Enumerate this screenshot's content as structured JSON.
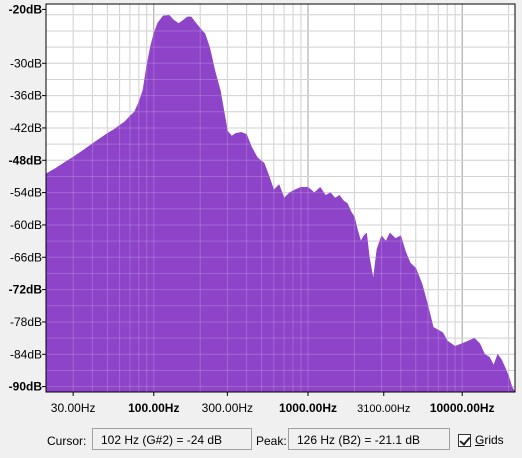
{
  "chart_data": {
    "type": "area",
    "x_scale": "log",
    "xlim": [
      20,
      22000
    ],
    "ylim": [
      -91,
      -19
    ],
    "fill_color": "#8e44c8",
    "y_ticks": [
      {
        "label": "-20dB",
        "value": -20,
        "bold": true
      },
      {
        "label": "-30dB",
        "value": -30,
        "bold": false
      },
      {
        "label": "-36dB",
        "value": -36,
        "bold": false
      },
      {
        "label": "-42dB",
        "value": -42,
        "bold": false
      },
      {
        "label": "-48dB",
        "value": -48,
        "bold": true
      },
      {
        "label": "-54dB",
        "value": -54,
        "bold": false
      },
      {
        "label": "-60dB",
        "value": -60,
        "bold": false
      },
      {
        "label": "-66dB",
        "value": -66,
        "bold": false
      },
      {
        "label": "-72dB",
        "value": -72,
        "bold": true
      },
      {
        "label": "-78dB",
        "value": -78,
        "bold": false
      },
      {
        "label": "-84dB",
        "value": -84,
        "bold": false
      },
      {
        "label": "-90dB",
        "value": -90,
        "bold": true
      }
    ],
    "x_ticks": [
      {
        "label": "30.00Hz",
        "value": 30,
        "style": "normal"
      },
      {
        "label": "100.00Hz",
        "value": 100,
        "style": "bold"
      },
      {
        "label": "300.00Hz",
        "value": 300,
        "style": "normal"
      },
      {
        "label": "1000.00Hz",
        "value": 1000,
        "style": "bold"
      },
      {
        "label": "3100.00Hz",
        "value": 3100,
        "style": "small"
      },
      {
        "label": "10000.00Hz",
        "value": 10000,
        "style": "bold"
      }
    ],
    "major_grid_x": [
      100,
      1000,
      10000
    ],
    "spectrum": [
      [
        20,
        -50.5
      ],
      [
        23,
        -49.5
      ],
      [
        27,
        -48.2
      ],
      [
        30,
        -47.4
      ],
      [
        35,
        -46.1
      ],
      [
        40,
        -44.9
      ],
      [
        45,
        -43.9
      ],
      [
        50,
        -43.0
      ],
      [
        55,
        -42.3
      ],
      [
        60,
        -41.5
      ],
      [
        65,
        -40.8
      ],
      [
        70,
        -39.8
      ],
      [
        75,
        -39.0
      ],
      [
        80,
        -37.2
      ],
      [
        85,
        -35.0
      ],
      [
        90,
        -30.5
      ],
      [
        95,
        -27.0
      ],
      [
        100,
        -24.5
      ],
      [
        106,
        -22.5
      ],
      [
        115,
        -21.2
      ],
      [
        126,
        -21.1
      ],
      [
        135,
        -22.0
      ],
      [
        145,
        -22.6
      ],
      [
        155,
        -22.0
      ],
      [
        165,
        -21.4
      ],
      [
        175,
        -21.4
      ],
      [
        185,
        -22.3
      ],
      [
        200,
        -23.5
      ],
      [
        215,
        -24.5
      ],
      [
        230,
        -27.0
      ],
      [
        250,
        -31.5
      ],
      [
        270,
        -35.0
      ],
      [
        290,
        -40.0
      ],
      [
        300,
        -42.5
      ],
      [
        320,
        -43.5
      ],
      [
        340,
        -43.0
      ],
      [
        370,
        -42.8
      ],
      [
        400,
        -43.2
      ],
      [
        430,
        -45.5
      ],
      [
        470,
        -47.5
      ],
      [
        520,
        -48.5
      ],
      [
        560,
        -51.0
      ],
      [
        600,
        -53.5
      ],
      [
        650,
        -52.5
      ],
      [
        700,
        -55.0
      ],
      [
        760,
        -54.0
      ],
      [
        820,
        -53.5
      ],
      [
        900,
        -53.0
      ],
      [
        1000,
        -53.0
      ],
      [
        1100,
        -54.0
      ],
      [
        1200,
        -53.0
      ],
      [
        1300,
        -54.5
      ],
      [
        1400,
        -54.0
      ],
      [
        1500,
        -55.0
      ],
      [
        1600,
        -54.5
      ],
      [
        1700,
        -55.5
      ],
      [
        1800,
        -56.0
      ],
      [
        1900,
        -57.5
      ],
      [
        2000,
        -58.5
      ],
      [
        2100,
        -61.0
      ],
      [
        2200,
        -63.0
      ],
      [
        2300,
        -62.0
      ],
      [
        2400,
        -61.5
      ],
      [
        2500,
        -66.0
      ],
      [
        2650,
        -70.0
      ],
      [
        2800,
        -64.5
      ],
      [
        3000,
        -62.0
      ],
      [
        3200,
        -63.0
      ],
      [
        3400,
        -61.5
      ],
      [
        3700,
        -62.5
      ],
      [
        4000,
        -62.0
      ],
      [
        4300,
        -65.0
      ],
      [
        4600,
        -67.0
      ],
      [
        5000,
        -68.0
      ],
      [
        5500,
        -71.0
      ],
      [
        6000,
        -75.0
      ],
      [
        6500,
        -79.0
      ],
      [
        7000,
        -79.5
      ],
      [
        7500,
        -80.0
      ],
      [
        8000,
        -81.5
      ],
      [
        9000,
        -82.5
      ],
      [
        10000,
        -82.0
      ],
      [
        11000,
        -81.5
      ],
      [
        12000,
        -81.0
      ],
      [
        13000,
        -82.0
      ],
      [
        14000,
        -84.0
      ],
      [
        15000,
        -84.5
      ],
      [
        16000,
        -86.0
      ],
      [
        17000,
        -84.0
      ],
      [
        18000,
        -85.0
      ],
      [
        19000,
        -86.5
      ],
      [
        20000,
        -88.0
      ],
      [
        21000,
        -90.0
      ],
      [
        22000,
        -91.0
      ]
    ]
  },
  "status_bar": {
    "cursor_label": "Cursor:",
    "cursor_value": "102 Hz (G#2) = -24 dB",
    "peak_label": "Peak:",
    "peak_value": "126 Hz (B2) = -21.1 dB",
    "grids_label_underlined": "G",
    "grids_label_rest": "rids",
    "grids_checked": true
  }
}
